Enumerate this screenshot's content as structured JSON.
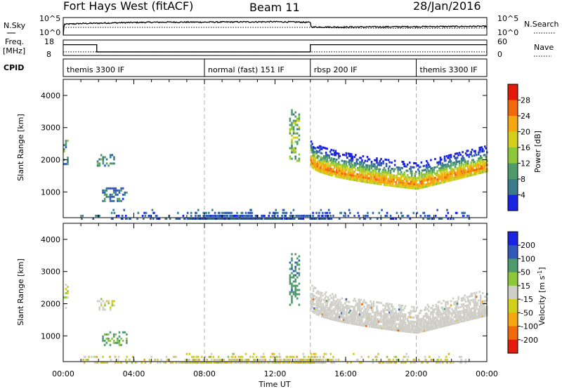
{
  "header": {
    "station": "Fort Hays West (fitACF)",
    "beam": "Beam 11",
    "date": "28/Jan/2016"
  },
  "time_axis": {
    "xlabel": "Time UT",
    "ticks": [
      "00:00",
      "04:00",
      "08:00",
      "12:00",
      "16:00",
      "20:00",
      "00:00"
    ],
    "range_hours": [
      0,
      24
    ],
    "mode_change_hours": [
      8,
      14,
      20
    ]
  },
  "panels": {
    "nsky": {
      "left_label": "N.Sky",
      "right_label": "N.Search",
      "tick_labels_left": [
        "10^5",
        "10^0"
      ],
      "tick_labels_right": [
        "10^5",
        "10^0"
      ]
    },
    "freq": {
      "left_label_1": "Freq.",
      "left_label_2": "[MHz]",
      "right_label": "Nave",
      "tick_labels_left": [
        "18",
        "8"
      ],
      "tick_labels_right": [
        "60",
        "0"
      ]
    },
    "cpid": {
      "label": "CPID",
      "segments": [
        {
          "start_hour": 0,
          "end_hour": 8,
          "label": "themis 3300 IF"
        },
        {
          "start_hour": 8,
          "end_hour": 14,
          "label": "normal (fast) 151 IF"
        },
        {
          "start_hour": 14,
          "end_hour": 20,
          "label": "rbsp 200 IF"
        },
        {
          "start_hour": 20,
          "end_hour": 24,
          "label": "themis 3300 IF"
        }
      ]
    }
  },
  "chart_data": [
    {
      "type": "line",
      "name": "nsky-nsearch",
      "title": "",
      "x_unit": "hours UT",
      "series": [
        {
          "name": "N.Sky",
          "style": "solid",
          "x": [
            0.01,
            0.05,
            1,
            2,
            4,
            6,
            8,
            10,
            12,
            13.5,
            14,
            14.05,
            16,
            18,
            20,
            22,
            24
          ],
          "y_log10": [
            0,
            3.1,
            3.3,
            3.4,
            3.6,
            3.7,
            3.7,
            3.75,
            3.8,
            3.7,
            3.6,
            2.3,
            2.3,
            2.35,
            2.4,
            2.45,
            2.5
          ]
        },
        {
          "name": "N.Search",
          "style": "dotted",
          "x": [
            0,
            6,
            12,
            14,
            16,
            20,
            24
          ],
          "y_log10": [
            2.2,
            2.2,
            2.2,
            2.2,
            2.0,
            1.95,
            2.0
          ]
        }
      ],
      "ylim_log10": [
        0,
        5
      ]
    },
    {
      "type": "line",
      "name": "freq-nave",
      "title": "",
      "x_unit": "hours UT",
      "series": [
        {
          "name": "Freq.",
          "style": "solid",
          "x": [
            0,
            1.9,
            1.9,
            14,
            14,
            24
          ],
          "y": [
            15,
            15,
            10.3,
            10.3,
            15,
            15
          ]
        },
        {
          "name": "Nave",
          "style": "dotted",
          "x": [
            0,
            24
          ],
          "y_nave": [
            14,
            14
          ]
        }
      ],
      "ylim": [
        8,
        18
      ],
      "ylim_right": [
        0,
        60
      ]
    },
    {
      "type": "heatmap",
      "name": "power",
      "title": "",
      "xlabel": "Time UT",
      "ylabel": "Slant Range [km]",
      "xlim": [
        0,
        24
      ],
      "ylim": [
        200,
        4500
      ],
      "yticks": [
        1000,
        2000,
        3000,
        4000
      ],
      "colorbar": {
        "label": "Power [dB]",
        "ticks": [
          "28",
          "24",
          "20",
          "16",
          "12",
          "8",
          "4"
        ],
        "range": [
          0,
          32
        ],
        "colors": [
          "#1a23e0",
          "#2f58b8",
          "#3a7a8a",
          "#4f9a6a",
          "#8ec73a",
          "#d4cf1a",
          "#f5a70f",
          "#f06a0a",
          "#e41a0a"
        ]
      },
      "features": [
        {
          "kind": "patch",
          "t": [
            0.0,
            0.3
          ],
          "r": [
            1900,
            2650
          ],
          "value": 10,
          "note": "left edge echoes"
        },
        {
          "kind": "patch",
          "t": [
            1.9,
            2.9
          ],
          "r": [
            1850,
            2200
          ],
          "value": 11
        },
        {
          "kind": "patch",
          "t": [
            2.2,
            3.6
          ],
          "r": [
            750,
            1150
          ],
          "value": 8
        },
        {
          "kind": "patch",
          "t": [
            12.8,
            13.4
          ],
          "r": [
            2000,
            3600
          ],
          "value": 14
        },
        {
          "kind": "band",
          "t": [
            14.0,
            24.0
          ],
          "r_center_start": 2000,
          "r_center_min": 1250,
          "r_center_min_hour": 20,
          "r_center_end": 1800,
          "core_value": 26,
          "edge_value": 12
        },
        {
          "kind": "ground",
          "t": [
            1,
            23
          ],
          "r": [
            200,
            500
          ],
          "value": 6
        }
      ]
    },
    {
      "type": "heatmap",
      "name": "velocity",
      "title": "",
      "xlabel": "Time UT",
      "ylabel": "Slant Range [km]",
      "xlim": [
        0,
        24
      ],
      "ylim": [
        200,
        4500
      ],
      "yticks": [
        1000,
        2000,
        3000,
        4000
      ],
      "colorbar": {
        "label": "Velocity [m s^-1]",
        "ticks": [
          "200",
          "100",
          "50",
          "15",
          "-15",
          "-50",
          "-100",
          "-200"
        ],
        "range": [
          -250,
          250
        ],
        "colors": [
          "#e41a0a",
          "#f06a0a",
          "#f5a70f",
          "#d4cf1a",
          "#cfcfc8",
          "#8ec73a",
          "#4f9a6a",
          "#2f58b8",
          "#1a23e0"
        ]
      },
      "features": [
        {
          "kind": "patch",
          "t": [
            0.0,
            0.3
          ],
          "r": [
            1900,
            2650
          ],
          "value": 0
        },
        {
          "kind": "patch",
          "t": [
            1.9,
            2.9
          ],
          "r": [
            1850,
            2200
          ],
          "value": 0
        },
        {
          "kind": "patch",
          "t": [
            2.2,
            3.6
          ],
          "r": [
            750,
            1150
          ],
          "value": 60
        },
        {
          "kind": "patch",
          "t": [
            12.8,
            13.4
          ],
          "r": [
            2000,
            3600
          ],
          "value": 80
        },
        {
          "kind": "band",
          "t": [
            14.0,
            24.0
          ],
          "r_center_start": 2000,
          "r_center_min": 1250,
          "r_center_min_hour": 20,
          "r_center_end": 1800,
          "core_value": 0,
          "edge_value": 0
        },
        {
          "kind": "ground",
          "t": [
            1,
            23
          ],
          "r": [
            200,
            500
          ],
          "value": -20
        }
      ]
    }
  ]
}
